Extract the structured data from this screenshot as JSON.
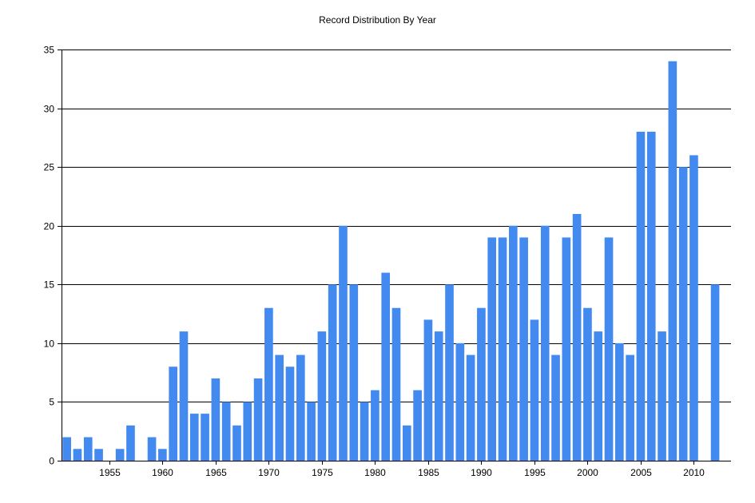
{
  "chart_data": {
    "type": "bar",
    "title": "Record Distribution By Year",
    "xlabel": "",
    "ylabel": "",
    "ylim": [
      0,
      35
    ],
    "xlim": [
      1950.5,
      2013.5
    ],
    "grid": true,
    "bar_color": "#4289f0",
    "y_ticks": [
      0,
      5,
      10,
      15,
      20,
      25,
      30,
      35
    ],
    "x_ticks": [
      1955,
      1960,
      1965,
      1970,
      1975,
      1980,
      1985,
      1990,
      1995,
      2000,
      2005,
      2010
    ],
    "x": [
      1951,
      1952,
      1953,
      1954,
      1956,
      1957,
      1959,
      1960,
      1961,
      1962,
      1963,
      1964,
      1965,
      1966,
      1967,
      1968,
      1969,
      1970,
      1971,
      1972,
      1973,
      1974,
      1975,
      1976,
      1977,
      1978,
      1979,
      1980,
      1981,
      1982,
      1983,
      1984,
      1985,
      1986,
      1987,
      1988,
      1989,
      1990,
      1991,
      1992,
      1993,
      1994,
      1995,
      1996,
      1997,
      1998,
      1999,
      2000,
      2001,
      2002,
      2003,
      2004,
      2005,
      2006,
      2007,
      2008,
      2009,
      2010,
      2012
    ],
    "values": [
      2,
      1,
      2,
      1,
      1,
      3,
      2,
      1,
      8,
      11,
      4,
      4,
      7,
      5,
      3,
      5,
      7,
      13,
      9,
      8,
      9,
      5,
      11,
      15,
      20,
      15,
      5,
      6,
      16,
      13,
      3,
      6,
      12,
      11,
      15,
      10,
      9,
      13,
      19,
      19,
      20,
      19,
      12,
      20,
      9,
      19,
      21,
      13,
      11,
      19,
      10,
      9,
      28,
      28,
      11,
      34,
      25,
      26,
      15
    ]
  }
}
